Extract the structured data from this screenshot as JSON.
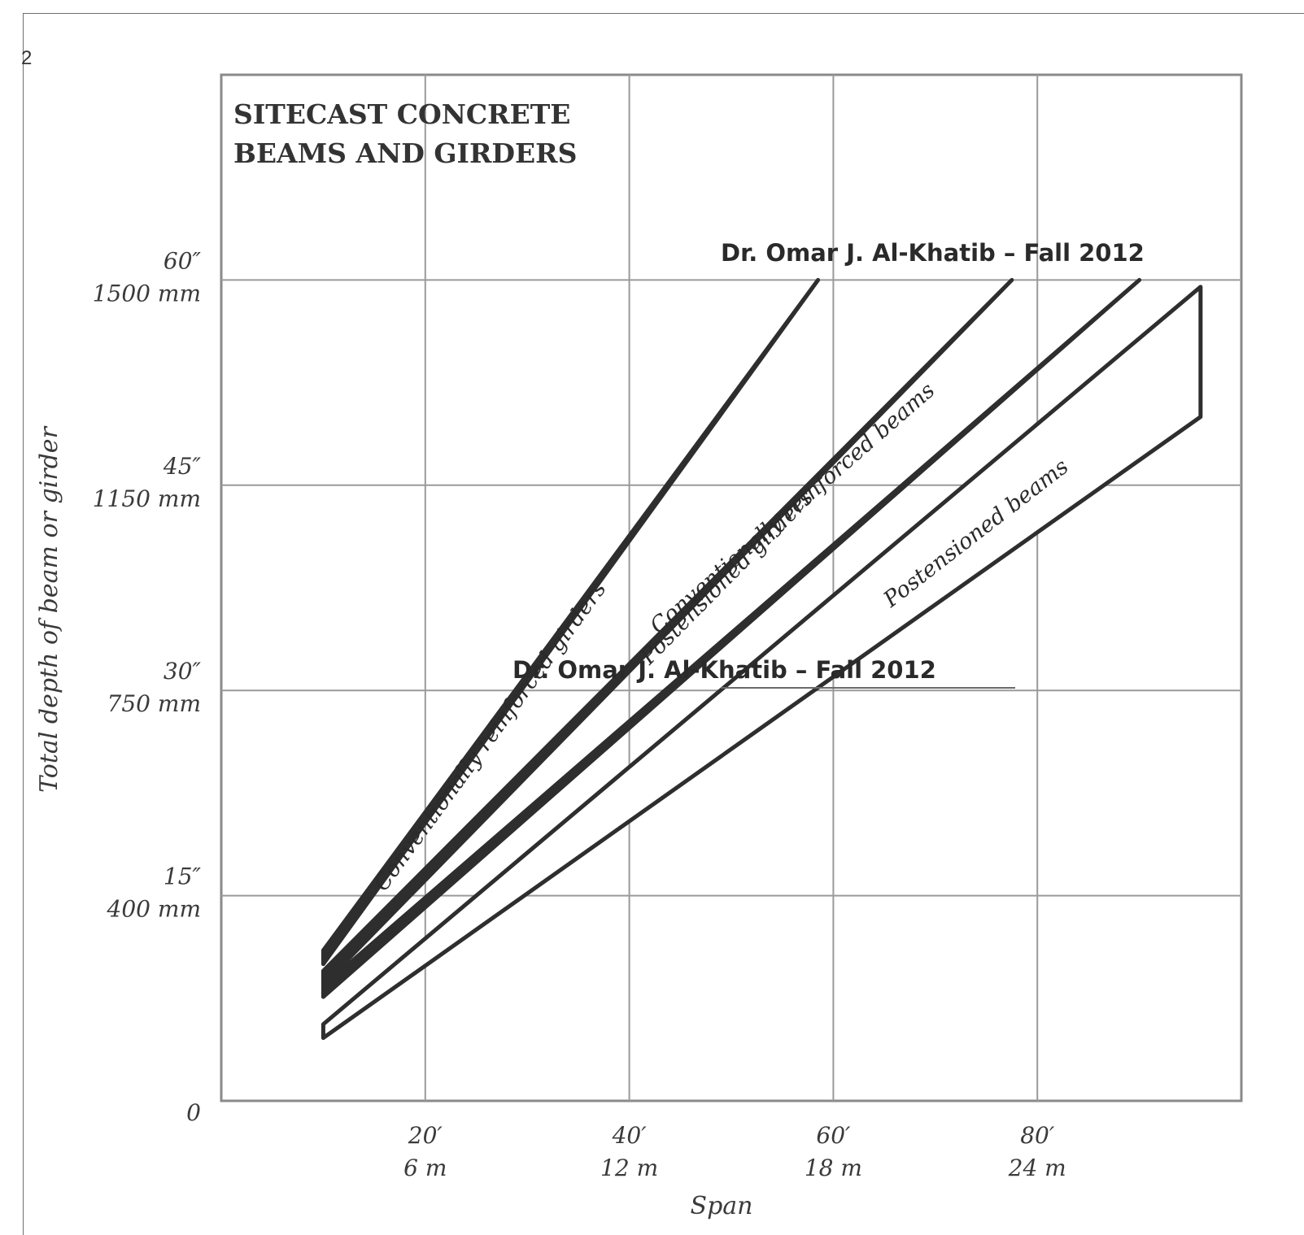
{
  "page": {
    "corner_mark": "2"
  },
  "chart_data": {
    "type": "area",
    "title": [
      "SITECAST CONCRETE",
      "BEAMS AND GIRDERS"
    ],
    "xlabel": "Span",
    "ylabel": "Total depth of beam or girder",
    "x_ticks": [
      {
        "value": 20,
        "labels": [
          "20′",
          "6 m"
        ]
      },
      {
        "value": 40,
        "labels": [
          "40′",
          "12 m"
        ]
      },
      {
        "value": 60,
        "labels": [
          "60′",
          "18 m"
        ]
      },
      {
        "value": 80,
        "labels": [
          "80′",
          "24 m"
        ]
      }
    ],
    "y_ticks": [
      {
        "value": 0,
        "labels": [
          "0"
        ]
      },
      {
        "value": 15,
        "labels": [
          "15″",
          "400 mm"
        ]
      },
      {
        "value": 30,
        "labels": [
          "30″",
          "750 mm"
        ]
      },
      {
        "value": 45,
        "labels": [
          "45″",
          "1150 mm"
        ]
      },
      {
        "value": 60,
        "labels": [
          "60″",
          "1500 mm"
        ]
      }
    ],
    "xlim": [
      0,
      100
    ],
    "ylim": [
      0,
      75
    ],
    "grid": true,
    "series": [
      {
        "name": "Conventionally reinforced girders",
        "x": [
          10,
          58.5
        ],
        "y_low": [
          10,
          60
        ],
        "y_high": [
          11,
          60
        ],
        "fill": "#2e2e2e"
      },
      {
        "name": "Postensioned girders",
        "x": [
          10,
          77.5
        ],
        "y_low": [
          8.5,
          60
        ],
        "y_high": [
          9.5,
          60
        ],
        "fill": "#2e2e2e"
      },
      {
        "name": "Conventionally reinforced beams",
        "x": [
          10,
          90
        ],
        "y_low": [
          7.6,
          60
        ],
        "y_high": [
          8.4,
          60
        ],
        "fill": "#2e2e2e"
      },
      {
        "name": "Postensioned beams",
        "x": [
          10,
          96
        ],
        "y_low": [
          4.6,
          50
        ],
        "y_high": [
          5.6,
          59.5
        ],
        "fill": "#ffffff"
      }
    ],
    "annotations": [
      "Dr. Omar J. Al-Khatib – Fall 2012",
      "Dr. Omar J. Al-Khatib – Fall 2012"
    ]
  }
}
